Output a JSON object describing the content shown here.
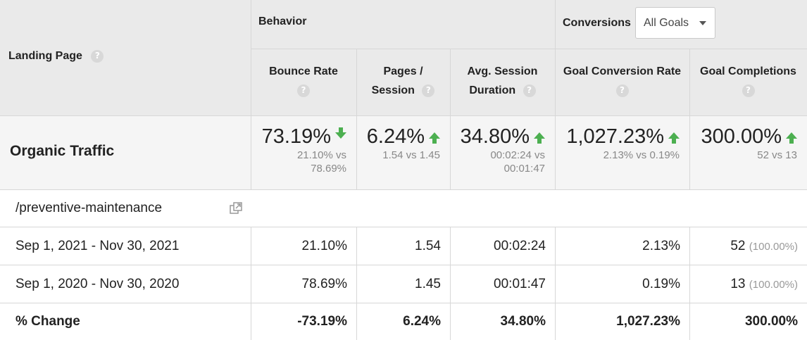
{
  "header": {
    "landing_page": "Landing Page",
    "behavior": "Behavior",
    "conversions": "Conversions",
    "goal_select": "All Goals",
    "columns": [
      {
        "l1": "Bounce Rate",
        "l2": ""
      },
      {
        "l1": "Pages /",
        "l2": "Session"
      },
      {
        "l1": "Avg. Session",
        "l2": "Duration"
      },
      {
        "l1": "Goal Conversion Rate",
        "l2": ""
      },
      {
        "l1": "Goal Completions",
        "l2": ""
      }
    ],
    "help_glyph": "?"
  },
  "summary": {
    "segment": "Organic Traffic",
    "cells": [
      {
        "big": "73.19%",
        "arrow": "down",
        "s1": "21.10% vs",
        "s2": "78.69%"
      },
      {
        "big": "6.24%",
        "arrow": "up",
        "s1": "1.54 vs 1.45",
        "s2": ""
      },
      {
        "big": "34.80%",
        "arrow": "up",
        "s1": "00:02:24 vs",
        "s2": "00:01:47"
      },
      {
        "big": "1,027.23%",
        "arrow": "up",
        "s1": "2.13% vs 0.19%",
        "s2": ""
      },
      {
        "big": "300.00%",
        "arrow": "up",
        "s1": "52 vs 13",
        "s2": ""
      }
    ]
  },
  "page_row": {
    "path": "/preventive-maintenance"
  },
  "rows": [
    {
      "label": "Sep 1, 2021 - Nov 30, 2021",
      "values": [
        "21.10%",
        "1.54",
        "00:02:24",
        "2.13%",
        "52"
      ],
      "completions_pct": "(100.00%)"
    },
    {
      "label": "Sep 1, 2020 - Nov 30, 2020",
      "values": [
        "78.69%",
        "1.45",
        "00:01:47",
        "0.19%",
        "13"
      ],
      "completions_pct": "(100.00%)"
    },
    {
      "label": "% Change",
      "values": [
        "-73.19%",
        "6.24%",
        "34.80%",
        "1,027.23%",
        "300.00%"
      ],
      "completions_pct": ""
    }
  ],
  "colors": {
    "header_bg": "#eaeaea",
    "summary_bg": "#f5f5f5",
    "up_arrow": "#4caf50"
  }
}
